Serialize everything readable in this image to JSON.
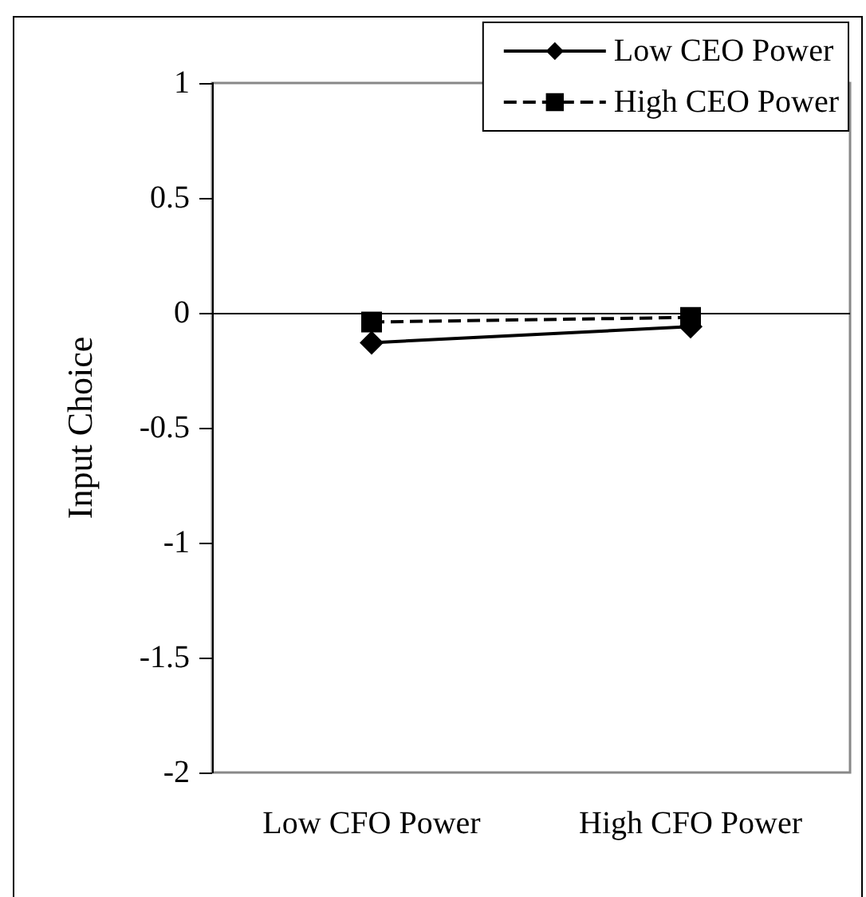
{
  "chart_data": {
    "type": "line",
    "ylabel": "Input Choice",
    "categories": [
      "Low CFO Power",
      "High CFO Power"
    ],
    "series": [
      {
        "name": "Low CEO Power",
        "color": "#000000",
        "values": [
          -0.13,
          -0.06
        ],
        "marker": "diamond",
        "line_style": "solid"
      },
      {
        "name": "High CEO Power",
        "color": "#000000",
        "values": [
          -0.04,
          -0.02
        ],
        "marker": "square",
        "line_style": "dashed"
      }
    ],
    "ref_lines": [
      {
        "axis": "y",
        "value": 0,
        "color": "#000000"
      }
    ],
    "ylim": [
      -2,
      1
    ],
    "yticks": [
      -2,
      -1.5,
      -1,
      -0.5,
      0,
      0.5,
      1
    ],
    "grid": false,
    "legend": "top right"
  }
}
